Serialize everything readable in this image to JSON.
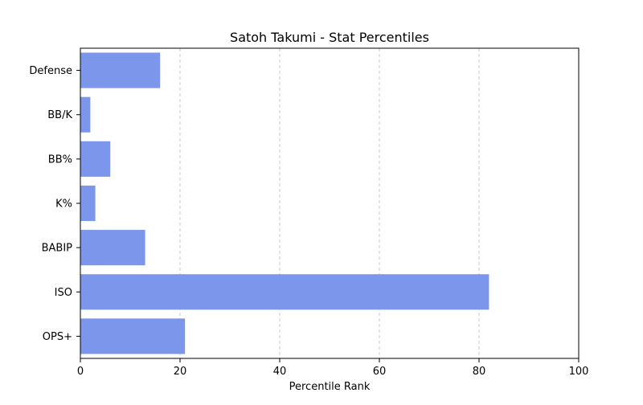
{
  "chart_data": {
    "type": "bar",
    "orientation": "horizontal",
    "title": "Satoh Takumi - Stat Percentiles",
    "xlabel": "Percentile Rank",
    "ylabel": "",
    "xlim": [
      0,
      100
    ],
    "xticks": [
      0,
      20,
      40,
      60,
      80,
      100
    ],
    "grid": "x-dashed",
    "categories": [
      "OPS+",
      "ISO",
      "BABIP",
      "K%",
      "BB%",
      "BB/K",
      "Defense"
    ],
    "values": [
      21,
      82,
      13,
      3,
      6,
      2,
      16
    ],
    "bar_color": "#7b96ea",
    "grid_color": "#c8c8c8"
  }
}
